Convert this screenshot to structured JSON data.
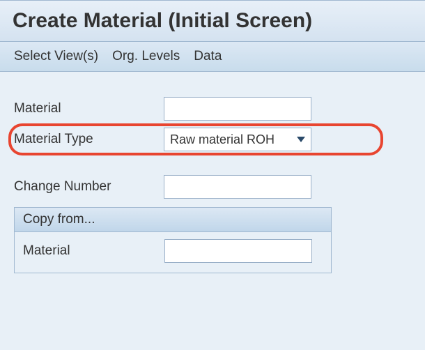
{
  "title": "Create Material (Initial Screen)",
  "menu": {
    "select_views": "Select View(s)",
    "org_levels": "Org. Levels",
    "data": "Data"
  },
  "form": {
    "material_label": "Material",
    "material_value": "",
    "material_type_label": "Material Type",
    "material_type_value": "Raw material ROH",
    "change_number_label": "Change Number",
    "change_number_value": ""
  },
  "panel": {
    "title": "Copy from...",
    "material_label": "Material",
    "material_value": ""
  },
  "colors": {
    "highlight": "#e84530",
    "background": "#e8f0f7",
    "border": "#a0b8d0",
    "input_border": "#9ab0c8"
  }
}
